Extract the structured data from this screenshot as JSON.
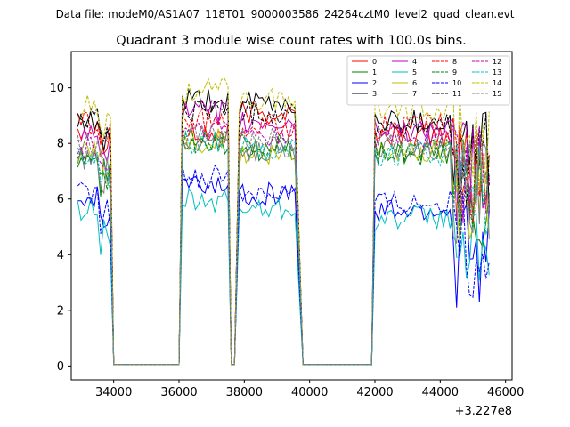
{
  "chart_data": {
    "type": "line",
    "suptitle": "Data file: modeM0/AS1A07_118T01_9000003586_24264cztM0_level2_quad_clean.evt",
    "title": "Quadrant 3 module wise count rates with 100.0s bins.",
    "xlabel": "",
    "ylabel": "",
    "x_offset_label": "+3.227e8",
    "xlim": [
      32700,
      46200
    ],
    "ylim": [
      -0.5,
      11.3
    ],
    "xticks": [
      34000,
      36000,
      38000,
      40000,
      42000,
      44000,
      46000
    ],
    "xtick_labels": [
      "34000",
      "36000",
      "38000",
      "40000",
      "42000",
      "44000",
      "46000"
    ],
    "yticks": [
      0,
      2,
      4,
      6,
      8,
      10
    ],
    "ytick_labels": [
      "0",
      "2",
      "4",
      "6",
      "8",
      "10"
    ],
    "grid": false,
    "legend_position": "top-right",
    "segments": [
      [
        32900,
        33900
      ],
      [
        36100,
        37500
      ],
      [
        37850,
        39600
      ],
      [
        42000,
        45500
      ]
    ],
    "gaps": [
      [
        34000,
        36000
      ],
      [
        37600,
        37700
      ],
      [
        39800,
        41900
      ]
    ],
    "series": [
      {
        "name": "0",
        "color": "#ff0000",
        "dash": "solid",
        "levels": [
          8.6,
          8.3,
          9.1,
          8.3
        ]
      },
      {
        "name": "1",
        "color": "#008000",
        "dash": "solid",
        "levels": [
          7.4,
          8.0,
          7.8,
          7.6
        ]
      },
      {
        "name": "2",
        "color": "#0000ff",
        "dash": "solid",
        "levels": [
          6.0,
          6.5,
          6.2,
          5.6
        ]
      },
      {
        "name": "3",
        "color": "#000000",
        "dash": "solid",
        "levels": [
          8.7,
          9.5,
          9.4,
          8.8
        ]
      },
      {
        "name": "4",
        "color": "#bf00bf",
        "dash": "solid",
        "levels": [
          8.2,
          9.1,
          8.7,
          8.5
        ]
      },
      {
        "name": "5",
        "color": "#00bfbf",
        "dash": "solid",
        "levels": [
          5.6,
          5.9,
          5.7,
          5.3
        ]
      },
      {
        "name": "6",
        "color": "#bfbf00",
        "dash": "solid",
        "levels": [
          7.7,
          8.1,
          7.5,
          7.7
        ]
      },
      {
        "name": "7",
        "color": "#808080",
        "dash": "solid",
        "levels": [
          7.5,
          8.2,
          7.8,
          7.8
        ]
      },
      {
        "name": "8",
        "color": "#ff0000",
        "dash": "dashed",
        "levels": [
          8.7,
          8.8,
          8.6,
          8.6
        ]
      },
      {
        "name": "9",
        "color": "#008000",
        "dash": "dashed",
        "levels": [
          7.6,
          8.1,
          7.9,
          7.7
        ]
      },
      {
        "name": "10",
        "color": "#0000ff",
        "dash": "dashed",
        "levels": [
          6.2,
          6.8,
          6.3,
          5.9
        ]
      },
      {
        "name": "11",
        "color": "#000000",
        "dash": "dashed",
        "levels": [
          8.9,
          9.2,
          9.1,
          8.6
        ]
      },
      {
        "name": "12",
        "color": "#bf00bf",
        "dash": "dashed",
        "levels": [
          7.8,
          8.5,
          8.3,
          8.2
        ]
      },
      {
        "name": "13",
        "color": "#00bfbf",
        "dash": "dashed",
        "levels": [
          7.4,
          8.0,
          7.8,
          7.6
        ]
      },
      {
        "name": "14",
        "color": "#bfbf00",
        "dash": "dashed",
        "levels": [
          9.3,
          9.9,
          9.6,
          9.3
        ]
      },
      {
        "name": "15",
        "color": "#808080",
        "dash": "dashed",
        "levels": [
          7.9,
          8.3,
          8.1,
          8.0
        ]
      }
    ]
  }
}
